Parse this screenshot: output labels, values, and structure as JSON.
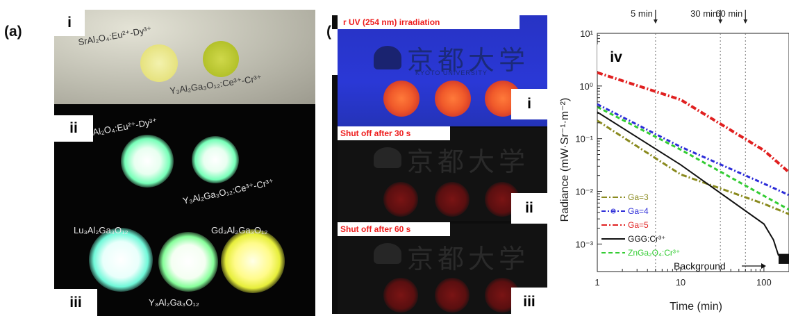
{
  "panel_a": {
    "label": "(a)",
    "sub_i": {
      "tag": "i",
      "sample1": "SrAl₂O₄:Eu²⁺-Dy³⁺",
      "sample2": "Y₃Al₂Ga₃O₁₂:Ce³⁺-Cr³⁺"
    },
    "sub_ii": {
      "tag": "ii",
      "sample1": "SrAl₂O₄:Eu²⁺-Dy³⁺",
      "sample2": "Y₃Al₂Ga₃O₁₂:Ce³⁺-Cr³⁺"
    },
    "sub_iii": {
      "tag": "iii",
      "sample_lu": "Lu₃Al₂Ga₃O₁₂",
      "sample_gd": "Gd₃Al₂Ga₃O₁₂",
      "sample_y": "Y₃Al₂Ga₃O₁₂"
    }
  },
  "panel_b": {
    "label": "(b)",
    "caption_i": "r UV (254 nm) irradiation",
    "caption_ii": "Shut off after 30 s",
    "caption_iii": "Shut off after 60 s",
    "logo_text": "京都大学",
    "logo_sub": "KYOTO UNIVERSITY",
    "tag_i": "i",
    "tag_ii": "ii",
    "tag_iii": "iii"
  },
  "panel_iv": {
    "tag": "iv",
    "colors": {
      "ga3": "#8a8a1e",
      "ga4": "#2b2bd8",
      "ga5": "#e02020",
      "ggg": "#111111",
      "znga": "#33cc33"
    },
    "chart_data": {
      "type": "line",
      "xscale": "log",
      "yscale": "log",
      "xlabel": "Time (min)",
      "ylabel": "Radiance (mW·Sr⁻¹·m⁻²)",
      "xlim": [
        1,
        200
      ],
      "ylim": [
        0.0003,
        10
      ],
      "x_ticks": [
        "1",
        "10",
        "100"
      ],
      "y_ticks": [
        "10⁻³",
        "10⁻²",
        "10⁻¹",
        "10⁰",
        "10¹"
      ],
      "markers": [
        {
          "label": "5 min",
          "x": 5
        },
        {
          "label": "30 min",
          "x": 30
        },
        {
          "label": "60 min",
          "x": 60
        }
      ],
      "annotation": "Background",
      "series": [
        {
          "name": "Ga=3",
          "style": "dash-dot",
          "points": [
            [
              1,
              0.22
            ],
            [
              10,
              0.021
            ],
            [
              100,
              0.0058
            ],
            [
              200,
              0.0037
            ]
          ]
        },
        {
          "name": "Ga=4",
          "style": "dash-dot-circle",
          "points": [
            [
              1,
              0.45
            ],
            [
              10,
              0.07
            ],
            [
              100,
              0.014
            ],
            [
              200,
              0.0085
            ]
          ]
        },
        {
          "name": "Ga=5",
          "style": "dash-dot",
          "points": [
            [
              1,
              1.8
            ],
            [
              10,
              0.55
            ],
            [
              100,
              0.06
            ],
            [
              200,
              0.023
            ]
          ]
        },
        {
          "name": "GGG:Cr³⁺",
          "style": "solid",
          "points": [
            [
              1,
              0.32
            ],
            [
              10,
              0.032
            ],
            [
              100,
              0.0024
            ],
            [
              130,
              0.0012
            ],
            [
              150,
              0.0006
            ]
          ]
        },
        {
          "name": "ZnGa₂O₄:Cr³⁺",
          "style": "dashed",
          "points": [
            [
              1,
              0.4
            ],
            [
              10,
              0.062
            ],
            [
              100,
              0.0082
            ],
            [
              200,
              0.0045
            ]
          ]
        }
      ]
    }
  }
}
